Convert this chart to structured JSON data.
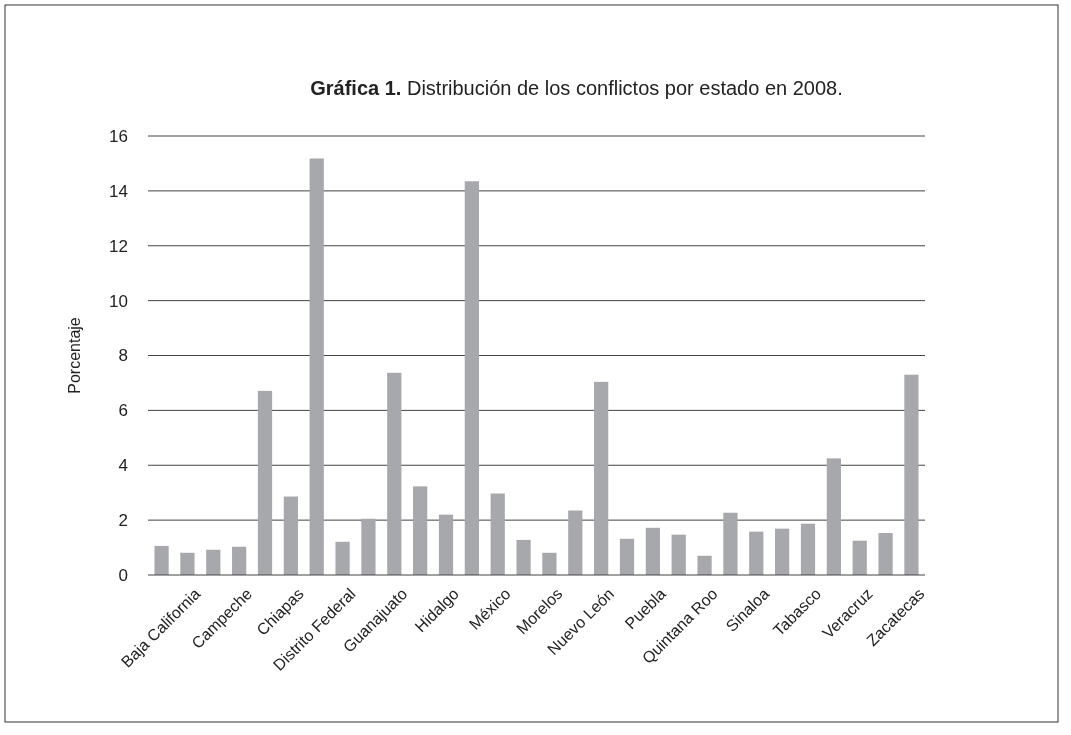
{
  "chart_data": {
    "type": "bar",
    "title": "Gráfica 1. Distribución de los conflictos por estado en 2008.",
    "ylabel": "Porcentaje",
    "categories": [
      null,
      "Baja California",
      null,
      "Campeche",
      null,
      "Chiapas",
      null,
      "Distrito Federal",
      null,
      "Guanajuato",
      null,
      "Hidalgo",
      null,
      "México",
      null,
      "Morelos",
      null,
      "Nuevo León",
      null,
      "Puebla",
      null,
      "Quintana Roo",
      null,
      "Sinaloa",
      null,
      "Tabasco",
      null,
      "Veracruz",
      null,
      "Zacatecas"
    ],
    "values": [
      1.06,
      0.81,
      0.92,
      1.03,
      6.71,
      2.86,
      15.18,
      1.21,
      2.05,
      7.37,
      3.23,
      2.2,
      14.35,
      2.97,
      1.28,
      0.81,
      2.35,
      7.04,
      1.32,
      1.72,
      1.47,
      0.7,
      2.27,
      1.58,
      1.69,
      1.87,
      4.25,
      1.25,
      1.53,
      7.3
    ],
    "color": "#a7a8ab",
    "ylim": [
      0,
      16
    ],
    "yticks": [
      0,
      2,
      4,
      6,
      8,
      10,
      12,
      14,
      16
    ],
    "grid": "y"
  }
}
